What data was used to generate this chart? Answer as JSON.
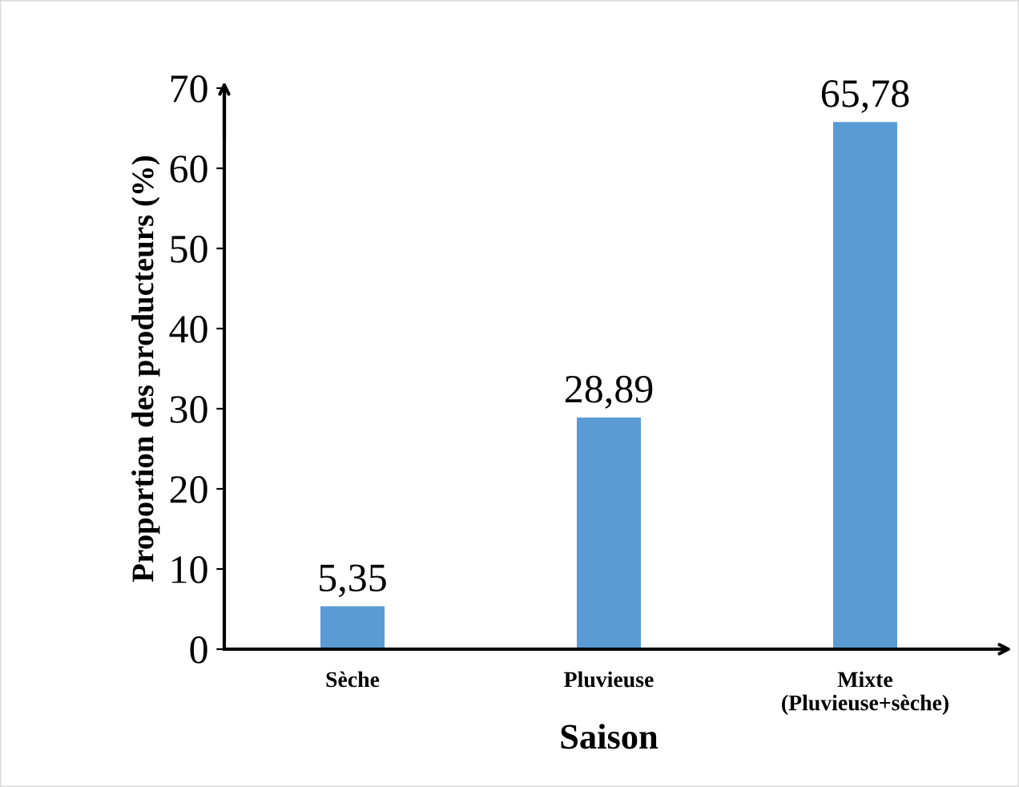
{
  "chart_data": {
    "type": "bar",
    "xlabel": "Saison",
    "ylabel": "Proportion des producteurs (%)",
    "categories": [
      "Sèche",
      "Pluvieuse",
      "Mixte\n(Pluvieuse+sèche)"
    ],
    "values": [
      5.35,
      28.89,
      65.78
    ],
    "value_labels": [
      "5,35",
      "28,89",
      "65,78"
    ],
    "color": "#5b9bd5",
    "ylim": [
      0,
      70
    ],
    "yticks": [
      0,
      10,
      20,
      30,
      40,
      50,
      60,
      70
    ],
    "grid": false,
    "legend": false
  }
}
